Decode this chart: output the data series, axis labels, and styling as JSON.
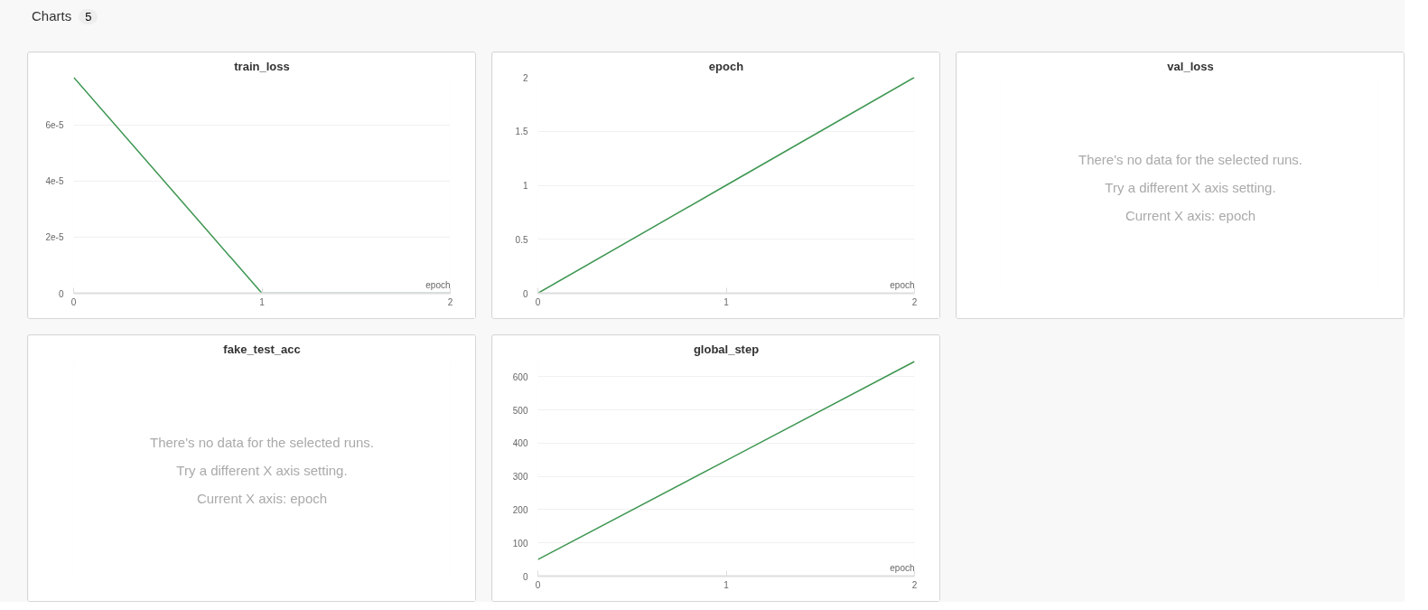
{
  "chart_data": [
    {
      "type": "other",
      "title": "Charts",
      "annotations": [
        "5"
      ]
    },
    {
      "type": "line",
      "title": "train_loss",
      "xlabel": "epoch",
      "x": [
        0,
        1,
        2
      ],
      "series": [
        {
          "color": "#3d9651",
          "values": [
            7.7e-05,
            0,
            0
          ]
        }
      ],
      "xlim": [
        0,
        2
      ],
      "ylim": [
        0,
        7.7e-05
      ],
      "xticks": [
        0,
        1,
        2
      ],
      "yticks": [
        {
          "value": 0,
          "label": "0"
        },
        {
          "value": 2e-05,
          "label": "2e-5"
        },
        {
          "value": 4e-05,
          "label": "4e-5"
        },
        {
          "value": 6e-05,
          "label": "6e-5"
        }
      ],
      "grid": "y"
    },
    {
      "type": "line",
      "title": "epoch",
      "xlabel": "epoch",
      "x": [
        0,
        1,
        2
      ],
      "series": [
        {
          "color": "#3d9651",
          "values": [
            0,
            1,
            2
          ]
        }
      ],
      "xlim": [
        0,
        2
      ],
      "ylim": [
        0,
        2
      ],
      "xticks": [
        0,
        1,
        2
      ],
      "yticks": [
        0,
        0.5,
        1,
        1.5,
        2
      ],
      "grid": "y"
    },
    {
      "type": "other",
      "title": "val_loss",
      "annotations": [
        "There's no data for the selected runs.",
        "Try a different X axis setting.",
        "Current X axis: epoch"
      ]
    },
    {
      "type": "other",
      "title": "fake_test_acc",
      "annotations": [
        "There's no data for the selected runs.",
        "Try a different X axis setting.",
        "Current X axis: epoch"
      ]
    },
    {
      "type": "line",
      "title": "global_step",
      "xlabel": "epoch",
      "x": [
        0,
        1,
        2
      ],
      "series": [
        {
          "color": "#3d9651",
          "values": [
            50,
            348,
            646
          ]
        }
      ],
      "xlim": [
        0,
        2
      ],
      "ylim": [
        0,
        650
      ],
      "xticks": [
        0,
        1,
        2
      ],
      "yticks": [
        0,
        100,
        200,
        300,
        400,
        500,
        600
      ],
      "grid": "y"
    }
  ]
}
